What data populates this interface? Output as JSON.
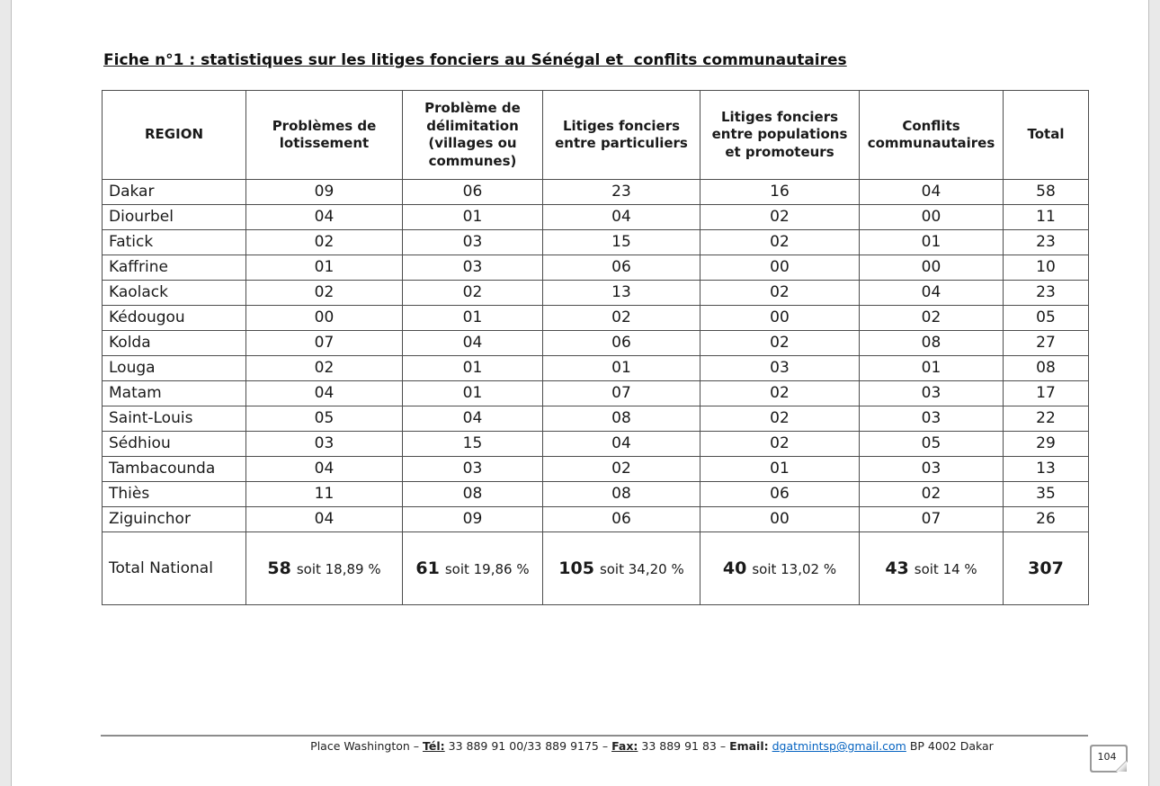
{
  "page": {
    "title": "Fiche n°1 : statistiques sur les litiges fonciers au Sénégal et  conflits communautaires",
    "page_number": "104"
  },
  "table": {
    "headers": [
      "REGION",
      "Problèmes de lotissement",
      "Problème de délimitation (villages ou communes)",
      "Litiges fonciers entre particuliers",
      "Litiges fonciers entre populations et promoteurs",
      "Conflits communautaires",
      "Total"
    ],
    "rows": [
      {
        "region": "Dakar",
        "values": [
          "09",
          "06",
          "23",
          "16",
          "04",
          "58"
        ]
      },
      {
        "region": "Diourbel",
        "values": [
          "04",
          "01",
          "04",
          "02",
          "00",
          "11"
        ]
      },
      {
        "region": "Fatick",
        "values": [
          "02",
          "03",
          "15",
          "02",
          "01",
          "23"
        ]
      },
      {
        "region": "Kaffrine",
        "values": [
          "01",
          "03",
          "06",
          "00",
          "00",
          "10"
        ]
      },
      {
        "region": "Kaolack",
        "values": [
          "02",
          "02",
          "13",
          "02",
          "04",
          "23"
        ]
      },
      {
        "region": "Kédougou",
        "values": [
          "00",
          "01",
          "02",
          "00",
          "02",
          "05"
        ]
      },
      {
        "region": "Kolda",
        "values": [
          "07",
          "04",
          "06",
          "02",
          "08",
          "27"
        ]
      },
      {
        "region": "Louga",
        "values": [
          "02",
          "01",
          "01",
          "03",
          "01",
          "08"
        ]
      },
      {
        "region": "Matam",
        "values": [
          "04",
          "01",
          "07",
          "02",
          "03",
          "17"
        ]
      },
      {
        "region": "Saint-Louis",
        "values": [
          "05",
          "04",
          "08",
          "02",
          "03",
          "22"
        ]
      },
      {
        "region": "Sédhiou",
        "values": [
          "03",
          "15",
          "04",
          "02",
          "05",
          "29"
        ]
      },
      {
        "region": "Tambacounda",
        "values": [
          "04",
          "03",
          "02",
          "01",
          "03",
          "13"
        ]
      },
      {
        "region": "Thiès",
        "values": [
          "11",
          "08",
          "08",
          "06",
          "02",
          "35"
        ]
      },
      {
        "region": "Ziguinchor",
        "values": [
          "04",
          "09",
          "06",
          "00",
          "07",
          "26"
        ]
      }
    ],
    "total_row": {
      "label": "Total National",
      "values": [
        {
          "bold": "58",
          "rest": "soit 18,89 %"
        },
        {
          "bold": "61",
          "rest": "soit 19,86 %"
        },
        {
          "bold": "105",
          "rest": "soit 34,20 %"
        },
        {
          "bold": "40",
          "rest": "soit 13,02 %"
        },
        {
          "bold": "43",
          "rest": "soit 14 %"
        },
        {
          "bold": "307",
          "rest": ""
        }
      ]
    }
  },
  "footer": {
    "segments": [
      {
        "text": "Place Washington – ",
        "style": "normal"
      },
      {
        "text": "Tél:",
        "style": "bold-underline"
      },
      {
        "text": " 33 889 91 00/33 889 9175 – ",
        "style": "normal"
      },
      {
        "text": "Fax:",
        "style": "bold-underline"
      },
      {
        "text": " 33 889 91 83 – ",
        "style": "normal"
      },
      {
        "text": "Email:",
        "style": "bold"
      },
      {
        "text": " ",
        "style": "normal"
      },
      {
        "text": "dgatmintsp@gmail.com",
        "style": "link"
      },
      {
        "text": " BP 4002 Dakar",
        "style": "normal"
      }
    ]
  }
}
